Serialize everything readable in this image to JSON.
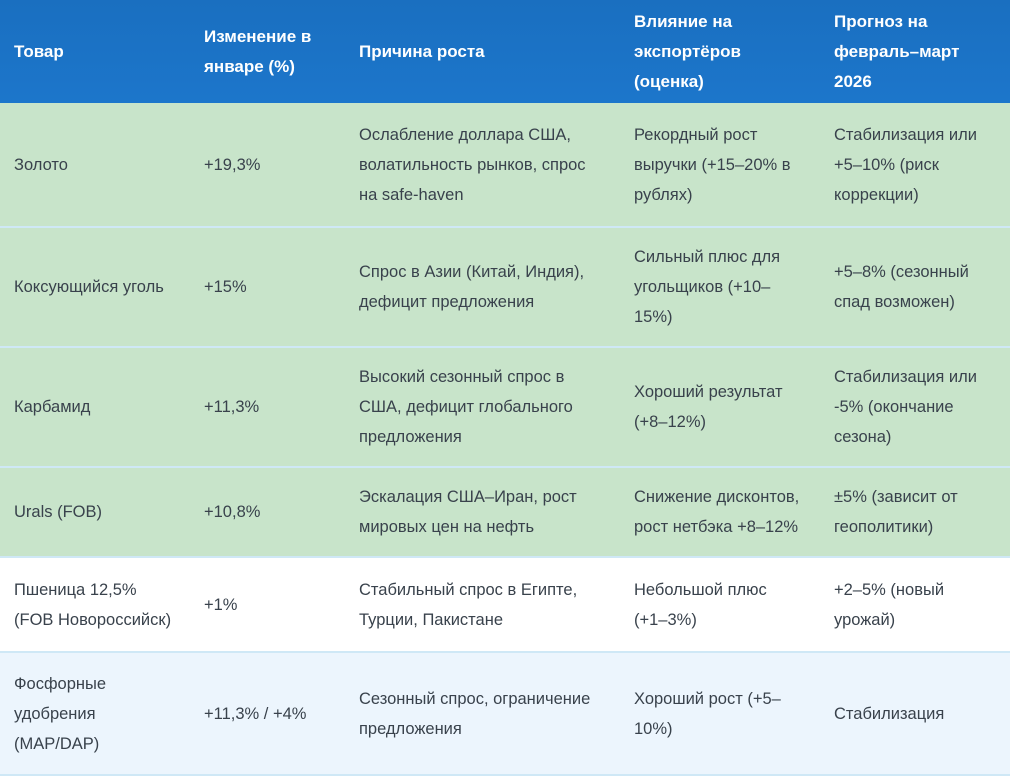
{
  "table": {
    "columns": [
      "Товар",
      "Изменение в январе (%)",
      "Причина роста",
      "Влияние на экспортёров (оценка)",
      "Прогноз на февраль–март 2026"
    ],
    "rows": [
      {
        "commodity": "Золото",
        "change": "+19,3%",
        "reason": "Ослабление доллара США, волатильность рынков, спрос на safe-haven",
        "impact": "Рекордный рост выручки (+15–20% в рублях)",
        "forecast": "Стабилизация или +5–10% (риск коррекции)"
      },
      {
        "commodity": "Коксующийся уголь",
        "change": "+15%",
        "reason": "Спрос в Азии (Китай, Индия), дефицит предложения",
        "impact": "Сильный плюс для угольщиков (+10–15%)",
        "forecast": "+5–8% (сезонный спад возможен)"
      },
      {
        "commodity": "Карбамид",
        "change": "+11,3%",
        "reason": "Высокий сезонный спрос в США, дефицит глобального предложения",
        "impact": "Хороший результат (+8–12%)",
        "forecast": "Стабилизация или -5% (окончание сезона)"
      },
      {
        "commodity": "Urals (FOB)",
        "change": "+10,8%",
        "reason": "Эскалация США–Иран, рост мировых цен на нефть",
        "impact": "Снижение дисконтов, рост нетбэка +8–12%",
        "forecast": "±5% (зависит от геополитики)"
      },
      {
        "commodity": "Пшеница 12,5% (FOB Новороссийск)",
        "change": "+1%",
        "reason": "Стабильный спрос в Египте, Турции, Пакистане",
        "impact": "Небольшой плюс (+1–3%)",
        "forecast": "+2–5% (новый урожай)"
      },
      {
        "commodity": "Фосфорные удобрения (MAP/DAP)",
        "change": "+11,3% / +4%",
        "reason": "Сезонный спрос, ограничение предложения",
        "impact": "Хороший рост (+5–10%)",
        "forecast": "Стабилизация"
      }
    ]
  },
  "colors": {
    "header_bg": "#1c76cb",
    "header_bg2": "#1a6fc0",
    "row_green": "#c8e4ca",
    "row_white": "#ffffff",
    "row_blue": "#ecf5fd",
    "divider": "#cfe8f6",
    "header_text": "#ffffff",
    "cell_text": "#39424c"
  }
}
